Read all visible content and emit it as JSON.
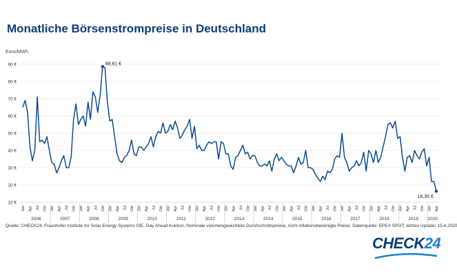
{
  "title": "Monatliche Börsenstrompreise in Deutschland",
  "unit": "Euro/MWh",
  "source": "Quelle: CHECK24, Fraunhofer Institute for Solar Energy Systems ISE, Day Ahead Auktion, Nominale volumengewichtete Durchschnittspreise, nicht inflationsbereinigte Preise; Datenquelle: EPEX SPOT; letztes Update: 15.4.2020",
  "logo": {
    "check": "CHECK",
    "num": "24"
  },
  "colors": {
    "line": "#0b4a92",
    "title": "#0b3d78",
    "grid": "#d9d9d9",
    "logo_accent": "#1a7fd0"
  },
  "chart_data": {
    "type": "line",
    "title": "Monatliche Börsenstrompreise in Deutschland",
    "ylabel": "Euro/MWh",
    "ylim": [
      10,
      90
    ],
    "yticks": [
      "10 €",
      "20 €",
      "30 €",
      "40 €",
      "50 €",
      "60 €",
      "70 €",
      "80 €",
      "90 €"
    ],
    "grid": true,
    "x_month_labels": [
      "Jan",
      "Apr",
      "Jul",
      "Okt"
    ],
    "years": [
      "2006",
      "2007",
      "2008",
      "2009",
      "2010",
      "2011",
      "2012",
      "2013",
      "2014",
      "2015",
      "2016",
      "2017",
      "2018",
      "2019",
      "2020"
    ],
    "annotations": [
      {
        "label": "88,61 €",
        "index": 33,
        "value": 88.61
      },
      {
        "label": "16,35 €",
        "index": 171,
        "value": 16.35
      }
    ],
    "series": [
      {
        "values": [
          65,
          69,
          62,
          42,
          34,
          40,
          71,
          45,
          46,
          44,
          48,
          40,
          33,
          32,
          27,
          30,
          34,
          37,
          30,
          30,
          36,
          58,
          67,
          55,
          58,
          60,
          54,
          68,
          58,
          74,
          71,
          62,
          72,
          88.61,
          88,
          68,
          57,
          58,
          48,
          38,
          34,
          33,
          36,
          37,
          40,
          46,
          38,
          37,
          42,
          42,
          40,
          42,
          44,
          48,
          42,
          48,
          51,
          50,
          56,
          50,
          51,
          55,
          52,
          57,
          53,
          47,
          49,
          52,
          54,
          58,
          47,
          54,
          41,
          43,
          40,
          40,
          43,
          45,
          44,
          45,
          45,
          35,
          45,
          44,
          38,
          38,
          31,
          29,
          36,
          37,
          40,
          43,
          38,
          39,
          35,
          37,
          37,
          33,
          31,
          31,
          32,
          31,
          34,
          28,
          35,
          38,
          34,
          36,
          34,
          32,
          31,
          31,
          27,
          31,
          36,
          32,
          33,
          40,
          30,
          30,
          29,
          26,
          24,
          22,
          25,
          23,
          28,
          27,
          29,
          35,
          37,
          36,
          50,
          36,
          33,
          28,
          30,
          31,
          34,
          31,
          33,
          39,
          28,
          40,
          38,
          33,
          40,
          33,
          36,
          42,
          48,
          55,
          56,
          53,
          57,
          47,
          48,
          36,
          28,
          36,
          37,
          33,
          40,
          37,
          35,
          39,
          41,
          31,
          36,
          22,
          22,
          16.35
        ]
      }
    ]
  }
}
